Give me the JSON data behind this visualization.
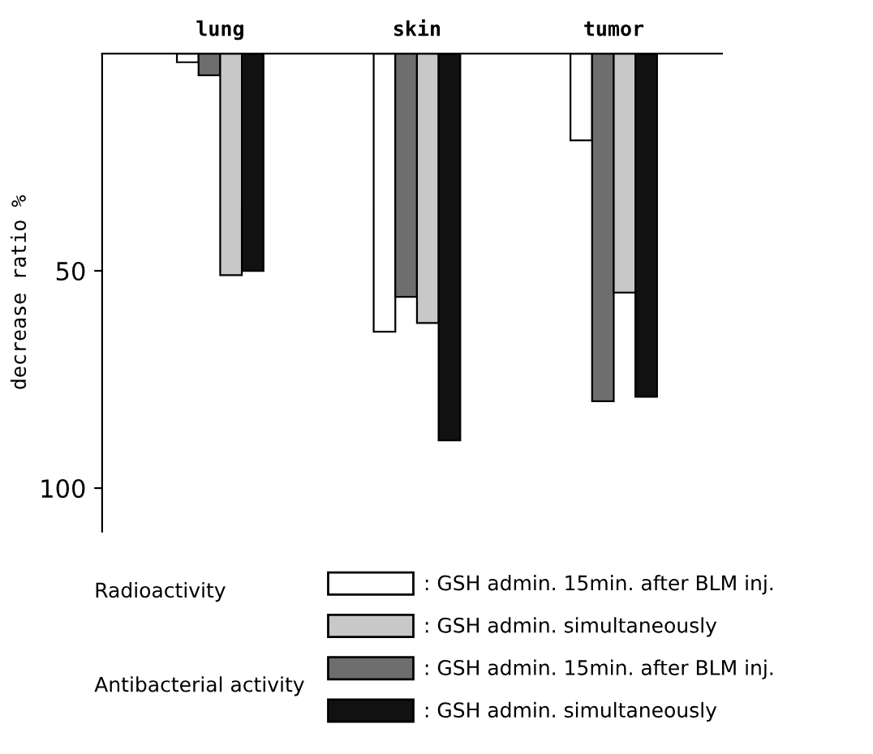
{
  "chart_data": {
    "type": "bar",
    "ylabel": "decrease ratio %",
    "categories": [
      "lung",
      "skin",
      "tumor"
    ],
    "series": [
      {
        "name": ": GSH admin. 15min. after BLM inj.",
        "color": "#ffffff",
        "values": [
          2,
          64,
          20
        ]
      },
      {
        "name": ": GSH admin. 15min. after BLM inj.",
        "color": "#6e6e6e",
        "values": [
          5,
          56,
          80
        ]
      },
      {
        "name": ": GSH admin. simultaneously",
        "color": "#c8c8c8",
        "values": [
          51,
          62,
          55
        ]
      },
      {
        "name": ": GSH admin. simultaneously",
        "color": "#111111",
        "values": [
          50,
          89,
          79
        ]
      }
    ],
    "ylim": [
      110,
      0
    ],
    "yticks": [
      50,
      100
    ],
    "legend": "bottom",
    "annotations": [
      "Radioactivity",
      "Antibacterial activity"
    ]
  }
}
